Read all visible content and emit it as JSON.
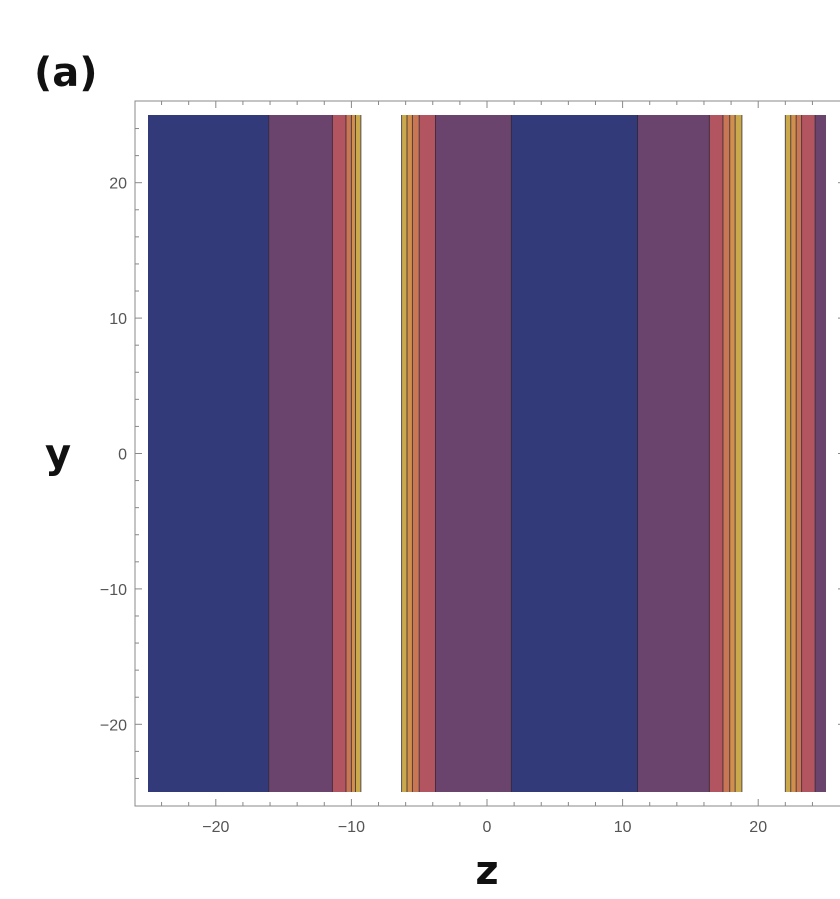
{
  "panel_label": "(a)",
  "chart_data": {
    "type": "contour",
    "xlabel": "z",
    "ylabel": "y",
    "xlim": [
      -25,
      25
    ],
    "ylim": [
      -25,
      25
    ],
    "xticks": [
      -20,
      -10,
      0,
      10,
      20
    ],
    "yticks": [
      -20,
      -10,
      0,
      10,
      20
    ],
    "xtick_labels": [
      "−20",
      "−10",
      "0",
      "10",
      "20"
    ],
    "ytick_labels": [
      "−20",
      "−10",
      "0",
      "10",
      "20"
    ],
    "contour_levels": [
      {
        "level": 0,
        "color": "#323a7a"
      },
      {
        "level": 1,
        "color": "#6a446d"
      },
      {
        "level": 2,
        "color": "#b35560"
      },
      {
        "level": 3,
        "color": "#c97655"
      },
      {
        "level": 4,
        "color": "#d18f4e"
      },
      {
        "level": 5,
        "color": "#c9a94b"
      },
      {
        "level": 6,
        "color": "#ffffff"
      }
    ],
    "bands": [
      {
        "z0": -25,
        "z1": -16.1,
        "level": 0
      },
      {
        "z0": -16.1,
        "z1": -11.4,
        "level": 1
      },
      {
        "z0": -11.4,
        "z1": -10.4,
        "level": 2
      },
      {
        "z0": -10.4,
        "z1": -10.0,
        "level": 3
      },
      {
        "z0": -10.0,
        "z1": -9.7,
        "level": 4
      },
      {
        "z0": -9.7,
        "z1": -9.3,
        "level": 5
      },
      {
        "z0": -9.3,
        "z1": -6.3,
        "level": 6
      },
      {
        "z0": -6.3,
        "z1": -5.9,
        "level": 5
      },
      {
        "z0": -5.9,
        "z1": -5.5,
        "level": 4
      },
      {
        "z0": -5.5,
        "z1": -5.0,
        "level": 3
      },
      {
        "z0": -5.0,
        "z1": -3.8,
        "level": 2
      },
      {
        "z0": -3.8,
        "z1": 1.8,
        "level": 1
      },
      {
        "z0": 1.8,
        "z1": 11.1,
        "level": 0
      },
      {
        "z0": 11.1,
        "z1": 16.4,
        "level": 1
      },
      {
        "z0": 16.4,
        "z1": 17.4,
        "level": 2
      },
      {
        "z0": 17.4,
        "z1": 17.9,
        "level": 3
      },
      {
        "z0": 17.9,
        "z1": 18.3,
        "level": 4
      },
      {
        "z0": 18.3,
        "z1": 18.8,
        "level": 5
      },
      {
        "z0": 18.8,
        "z1": 22.0,
        "level": 6
      },
      {
        "z0": 22.0,
        "z1": 22.4,
        "level": 5
      },
      {
        "z0": 22.4,
        "z1": 22.8,
        "level": 4
      },
      {
        "z0": 22.8,
        "z1": 23.2,
        "level": 3
      },
      {
        "z0": 23.2,
        "z1": 24.2,
        "level": 2
      },
      {
        "z0": 24.2,
        "z1": 25.0,
        "level": 1
      }
    ],
    "grid": false,
    "legend": "none"
  }
}
